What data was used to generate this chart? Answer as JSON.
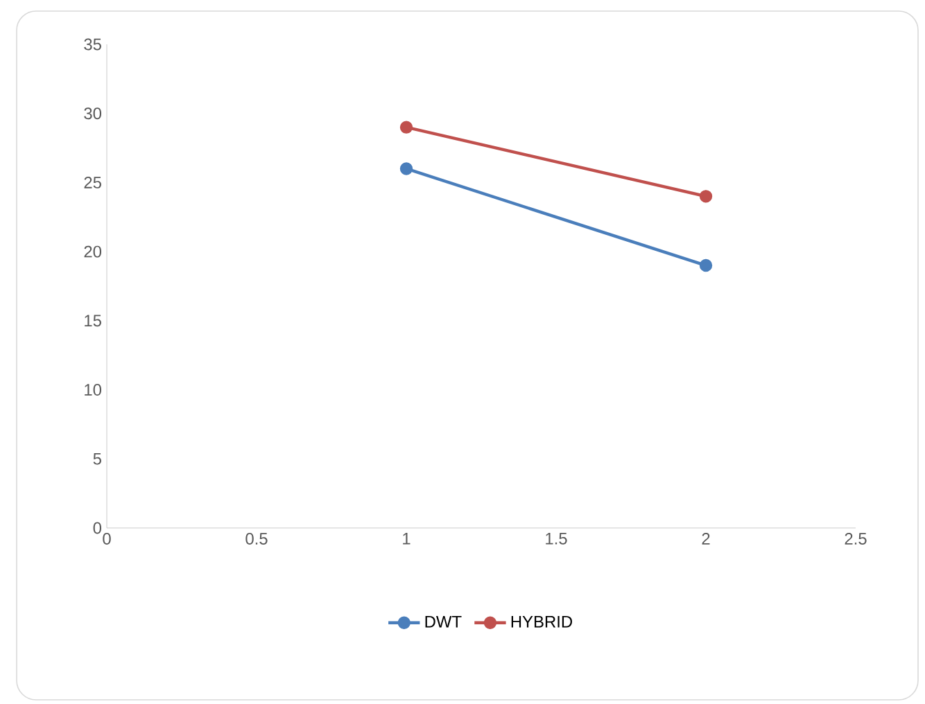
{
  "chart_data": {
    "type": "line",
    "xlim": [
      0,
      2.5
    ],
    "xticks": [
      0,
      0.5,
      1,
      1.5,
      2,
      2.5
    ],
    "ylim": [
      0,
      35
    ],
    "yticks": [
      0,
      5,
      10,
      15,
      20,
      25,
      30,
      35
    ],
    "grid": false,
    "legend": "bottom",
    "marker": "circle",
    "line_style": "solid",
    "x": [
      1,
      2
    ],
    "series": [
      {
        "name": "DWT",
        "color": "#4a7ebb",
        "values": [
          26,
          19
        ]
      },
      {
        "name": "HYBRID",
        "color": "#c0504d",
        "values": [
          29,
          24
        ]
      }
    ]
  }
}
